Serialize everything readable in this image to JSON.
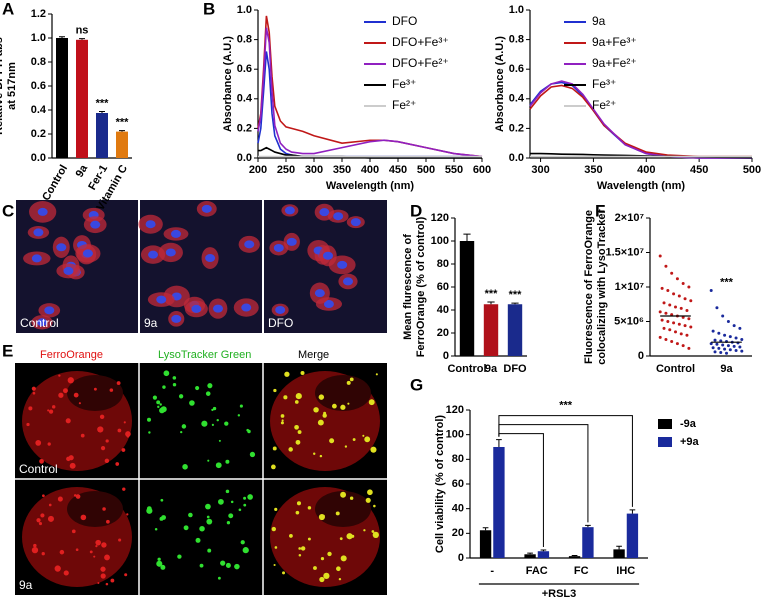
{
  "chart_data": [
    {
      "type": "bar",
      "label": "A",
      "ylabel": [
        "Relative DPPH abs",
        "at 517nm"
      ],
      "categories": [
        "Control",
        "9a",
        "Fer-1",
        "Vitamin C"
      ],
      "values": [
        1.0,
        0.985,
        0.375,
        0.22
      ],
      "errors": [
        0.01,
        0.01,
        0.012,
        0.008
      ],
      "colors": [
        "#000000",
        "#c0101a",
        "#1a2a8c",
        "#e07a10"
      ],
      "bar_labels": [
        null,
        "ns",
        "***",
        "***"
      ],
      "ylim": [
        0,
        1.2
      ],
      "yticks": [
        {
          "value": 0,
          "label": "0.0"
        },
        0.2,
        0.4,
        0.6,
        0.8,
        {
          "value": 1,
          "label": "1.0"
        },
        1.2
      ]
    },
    {
      "type": "line",
      "label": "B",
      "ylabel": [
        "Absorbance (A.U.)"
      ],
      "xlabel": "Wavelength (nm)",
      "x": [
        200,
        205,
        210,
        215,
        220,
        225,
        230,
        240,
        250,
        260,
        280,
        300,
        350,
        400,
        425,
        450,
        500,
        550,
        600
      ],
      "series": [
        {
          "name": "DFO",
          "color": "#2030d0",
          "values": [
            0.1,
            0.2,
            0.45,
            0.72,
            0.6,
            0.3,
            0.15,
            0.06,
            0.03,
            0.02,
            0.01,
            0.01,
            0.01,
            0.01,
            0.01,
            0.01,
            0.01,
            0.01,
            0.01
          ]
        },
        {
          "name": "DFO+Fe³⁺",
          "color": "#c01818",
          "values": [
            0.2,
            0.3,
            0.6,
            0.96,
            0.85,
            0.55,
            0.35,
            0.25,
            0.21,
            0.2,
            0.18,
            0.15,
            0.1,
            0.12,
            0.12,
            0.11,
            0.07,
            0.03,
            0.01
          ]
        },
        {
          "name": "DFO+Fe²⁺",
          "color": "#9020c0",
          "values": [
            0.18,
            0.28,
            0.55,
            0.88,
            0.78,
            0.45,
            0.22,
            0.1,
            0.06,
            0.04,
            0.03,
            0.03,
            0.07,
            0.11,
            0.12,
            0.11,
            0.07,
            0.03,
            0.01
          ]
        },
        {
          "name": "Fe³⁺",
          "color": "#000000",
          "values": [
            0.05,
            0.05,
            0.06,
            0.07,
            0.06,
            0.05,
            0.04,
            0.03,
            0.02,
            0.02,
            0.01,
            0.01,
            0.01,
            0,
            0,
            0,
            0,
            0,
            0
          ]
        },
        {
          "name": "Fe²⁺",
          "color": "#cccccc",
          "values": [
            0.01,
            0.01,
            0.01,
            0.01,
            0.01,
            0.01,
            0.01,
            0.01,
            0.01,
            0.01,
            0.01,
            0.01,
            0.01,
            0.01,
            0.01,
            0.01,
            0.01,
            0.01,
            0.01
          ]
        }
      ],
      "xlim": [
        200,
        600
      ],
      "xticks": [
        200,
        250,
        300,
        350,
        400,
        450,
        500,
        550,
        600
      ],
      "ylim": [
        0,
        1
      ],
      "yticks": [
        {
          "value": 0,
          "label": "0.0"
        },
        0.2,
        0.4,
        0.6,
        0.8,
        {
          "value": 1,
          "label": "1.0"
        }
      ]
    },
    {
      "type": "line",
      "ylabel": [
        "Absorbance (A.U.)"
      ],
      "xlabel": "Wavelength (nm)",
      "x": [
        290,
        300,
        310,
        320,
        330,
        340,
        350,
        360,
        380,
        400,
        420,
        450,
        500
      ],
      "series": [
        {
          "name": "9a",
          "color": "#2030d0",
          "values": [
            0.36,
            0.45,
            0.5,
            0.51,
            0.49,
            0.42,
            0.32,
            0.22,
            0.09,
            0.03,
            0.01,
            0,
            0
          ]
        },
        {
          "name": "9a+Fe³⁺",
          "color": "#c01818",
          "values": [
            0.33,
            0.42,
            0.48,
            0.49,
            0.47,
            0.41,
            0.32,
            0.22,
            0.1,
            0.04,
            0.02,
            0.01,
            0.01
          ]
        },
        {
          "name": "9a+Fe²⁺",
          "color": "#9020c0",
          "values": [
            0.35,
            0.44,
            0.5,
            0.52,
            0.5,
            0.43,
            0.33,
            0.23,
            0.09,
            0.03,
            0.01,
            0,
            0
          ]
        },
        {
          "name": "Fe³⁺",
          "color": "#000000",
          "values": [
            0.03,
            0.03,
            0.028,
            0.026,
            0.025,
            0.024,
            0.022,
            0.02,
            0.017,
            0.014,
            0.011,
            0.007,
            0.002
          ]
        },
        {
          "name": "Fe²⁺",
          "color": "#cccccc",
          "values": [
            0.01,
            0.01,
            0.01,
            0.01,
            0.01,
            0.01,
            0.01,
            0.01,
            0.01,
            0.01,
            0.01,
            0.01,
            0.01
          ]
        }
      ],
      "xlim": [
        290,
        500
      ],
      "xticks": [
        300,
        350,
        400,
        450,
        500
      ],
      "ylim": [
        0,
        1
      ],
      "yticks": [
        {
          "value": 0,
          "label": "0.0"
        },
        0.2,
        0.4,
        0.6,
        0.8,
        {
          "value": 1,
          "label": "1.0"
        }
      ]
    },
    {
      "type": "bar",
      "label": "D",
      "ylabel": [
        "Mean flurescence of",
        "FerroOrange (% of control)"
      ],
      "categories": [
        "Control",
        "9a",
        "DFO"
      ],
      "values": [
        100,
        45,
        45
      ],
      "errors": [
        6,
        2,
        1
      ],
      "colors": [
        "#000000",
        "#b0101a",
        "#1a2a8c"
      ],
      "bar_labels": [
        null,
        "***",
        "***"
      ],
      "ylim": [
        0,
        120
      ],
      "yticks": [
        0,
        20,
        40,
        60,
        80,
        100,
        120
      ]
    },
    {
      "type": "dot",
      "label": "F",
      "ylabel": [
        "Fluorescence of FerroOrange",
        "colocalizing with LysoTracker"
      ],
      "series": [
        {
          "name": "Control",
          "color": "#c01818",
          "mean": 5800000,
          "values": [
            14500000,
            13000000,
            12000000,
            11200000,
            10500000,
            10000000,
            9800000,
            9500000,
            9000000,
            8700000,
            8300000,
            8000000,
            7700000,
            7400000,
            7100000,
            6900000,
            6600000,
            6400000,
            6200000,
            6000000,
            5800000,
            5600000,
            5400000,
            5200000,
            5000000,
            4800000,
            4600000,
            4400000,
            4200000,
            4000000,
            3800000,
            3500000,
            3200000,
            3000000,
            2700000,
            2400000,
            2100000,
            1800000,
            1500000,
            1100000
          ]
        },
        {
          "name": "9a",
          "color": "#1a2a9c",
          "mean": 2000000,
          "values": [
            9500000,
            7000000,
            5800000,
            5000000,
            4400000,
            4000000,
            3600000,
            3300000,
            3000000,
            2800000,
            2600000,
            2400000,
            2300000,
            2200000,
            2100000,
            2000000,
            1900000,
            1800000,
            1700000,
            1600000,
            1500000,
            1400000,
            1300000,
            1200000,
            1100000,
            1000000,
            900000,
            800000,
            700000,
            600000,
            500000,
            400000
          ]
        }
      ],
      "bar_labels": [
        null,
        "***"
      ],
      "ylim": [
        0,
        20000000
      ],
      "yticks": [
        0,
        {
          "value": 5000000,
          "label": "5×10⁶"
        },
        {
          "value": 10000000,
          "label": "1×10⁷"
        },
        {
          "value": 15000000,
          "label": "1.5×10⁷"
        },
        {
          "value": 20000000,
          "label": "2×10⁷"
        }
      ]
    },
    {
      "type": "bar",
      "label": "G",
      "ylabel": [
        "Cell viability (% of control)"
      ],
      "xlabel": "+RSL3",
      "annotation": "***",
      "categories": [
        "-",
        "FAC",
        "FC",
        "IHC"
      ],
      "series": [
        {
          "name": "-9a",
          "color": "#000000",
          "values": [
            22.5,
            3,
            1.5,
            7
          ],
          "errors": [
            2,
            1,
            0.5,
            2.5
          ]
        },
        {
          "name": "+9a",
          "color": "#1a2a9c",
          "values": [
            90,
            5.5,
            25,
            36
          ],
          "errors": [
            6,
            1,
            1.5,
            3
          ]
        }
      ],
      "ylim": [
        0,
        120
      ],
      "yticks": [
        0,
        20,
        40,
        60,
        80,
        100,
        120
      ]
    }
  ],
  "images": {
    "C": {
      "label": "C",
      "panels": [
        "Control",
        "9a",
        "DFO"
      ]
    },
    "E": {
      "label": "E",
      "columns": [
        "FerroOrange",
        "LysoTracker Green",
        "Merge"
      ],
      "rows": [
        "Control",
        "9a"
      ]
    }
  }
}
